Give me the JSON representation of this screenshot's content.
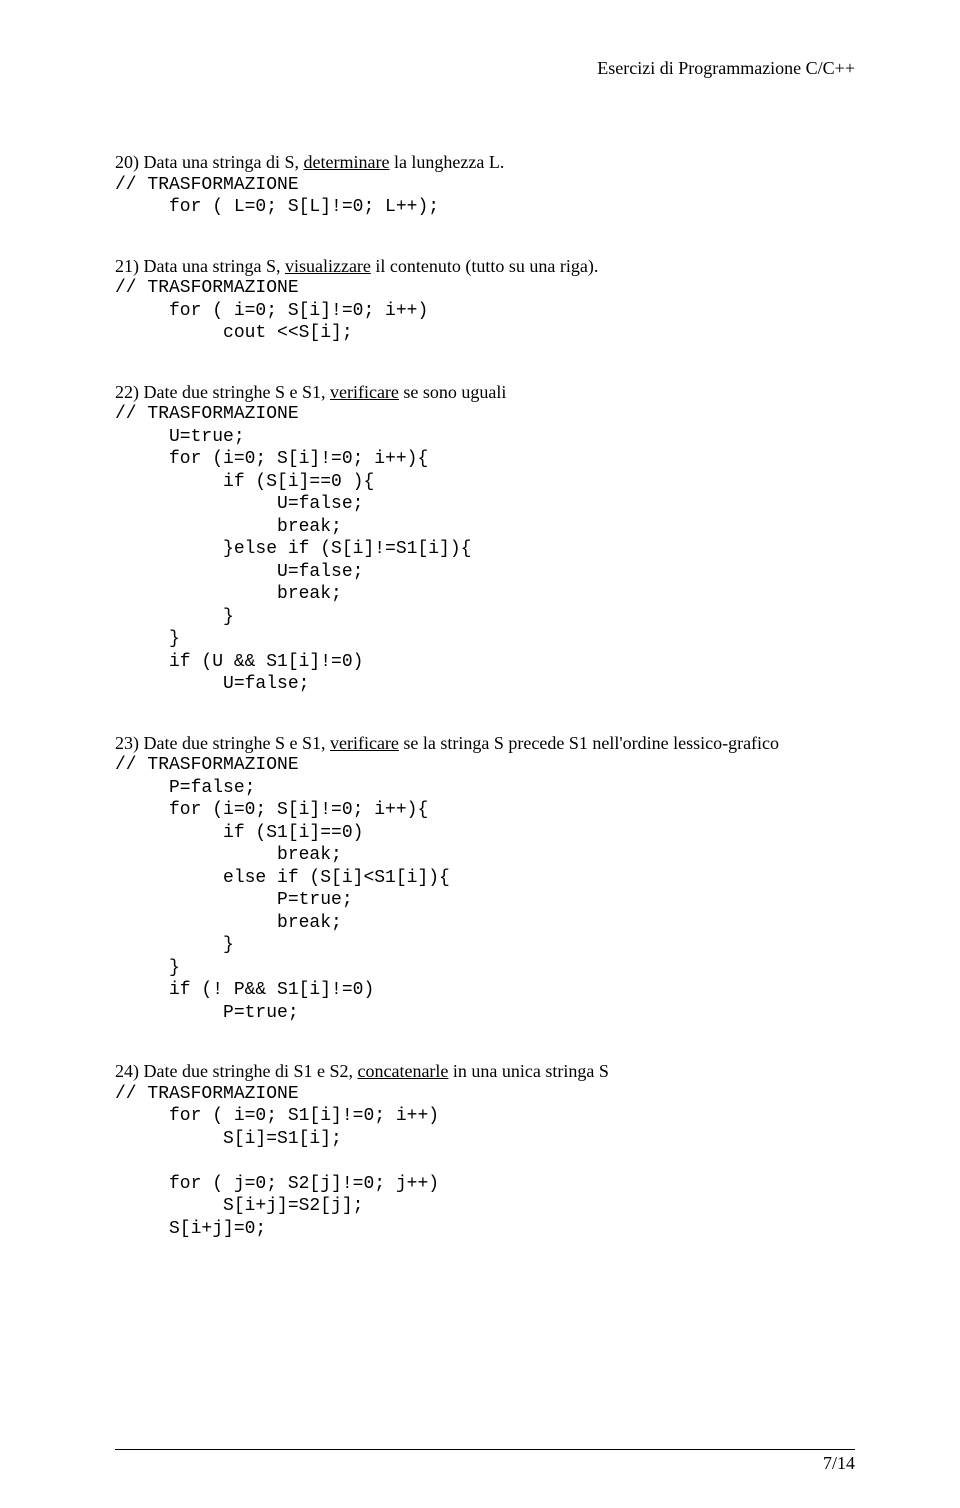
{
  "header": {
    "text": "Esercizi di Programmazione C/C++"
  },
  "ex20": {
    "num": "20)",
    "text_a": "Data una stringa di S, ",
    "text_u": "determinare",
    "text_b": " la lunghezza L.",
    "c1": "// TRASFORMAZIONE",
    "c2": "     for ( L=0; S[L]!=0; L++);"
  },
  "ex21": {
    "num": "21)",
    "text_a": "Data una stringa S, ",
    "text_u": "visualizzare",
    "text_b": " il contenuto (tutto su una riga).",
    "c1": "// TRASFORMAZIONE",
    "c2": "     for ( i=0; S[i]!=0; i++)",
    "c3": "          cout <<S[i];"
  },
  "ex22": {
    "num": "22)",
    "text_a": "Date due stringhe S e S1, ",
    "text_u": "verificare",
    "text_b": " se sono uguali",
    "c1": "// TRASFORMAZIONE",
    "c2": "     U=true;",
    "c3": "     for (i=0; S[i]!=0; i++){",
    "c4": "          if (S[i]==0 ){",
    "c5": "               U=false;",
    "c6": "               break;",
    "c7": "          }else if (S[i]!=S1[i]){",
    "c8": "               U=false;",
    "c9": "               break;",
    "c10": "          }",
    "c11": "     }",
    "c12": "     if (U && S1[i]!=0)",
    "c13": "          U=false;"
  },
  "ex23": {
    "num": "23)",
    "text_a": "Date due stringhe S e S1, ",
    "text_u": "verificare",
    "text_b": " se la stringa S precede S1 nell'ordine lessico-grafico",
    "c1": "// TRASFORMAZIONE",
    "c2": "     P=false;",
    "c3": "     for (i=0; S[i]!=0; i++){",
    "c4": "          if (S1[i]==0)",
    "c5": "               break;",
    "c6": "          else if (S[i]<S1[i]){",
    "c7": "               P=true;",
    "c8": "               break;",
    "c9": "          }",
    "c10": "     }",
    "c11": "     if (! P&& S1[i]!=0)",
    "c12": "          P=true;"
  },
  "ex24": {
    "num": "24)",
    "text_a": "Date due stringhe di S1 e S2, ",
    "text_u": "concatenarle",
    "text_b": " in una unica stringa S",
    "c1": "// TRASFORMAZIONE",
    "c2": "     for ( i=0; S1[i]!=0; i++)",
    "c3": "          S[i]=S1[i];",
    "c4": "     for ( j=0; S2[j]!=0; j++)",
    "c5": "          S[i+j]=S2[j];",
    "c6": "     S[i+j]=0;"
  },
  "footer": {
    "page": "7/14"
  }
}
